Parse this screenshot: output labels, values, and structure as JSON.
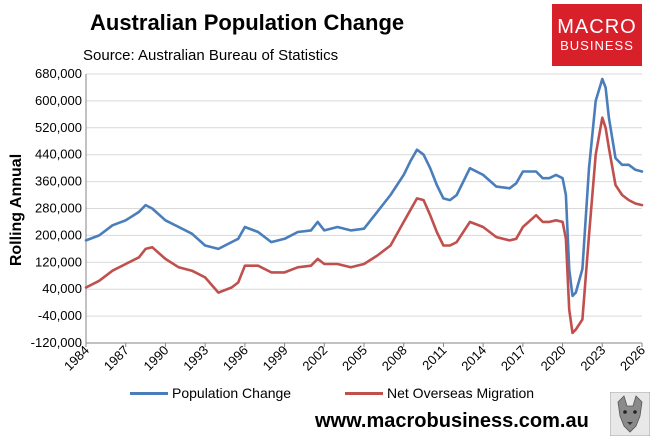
{
  "header": {
    "title": "Australian Population Change",
    "subtitle": "Source: Australian Bureau of Statistics"
  },
  "logo": {
    "line1": "MACRO",
    "line2": "BUSINESS",
    "color": "#d7202a"
  },
  "footer": {
    "website": "www.macrobusiness.com.au"
  },
  "colors": {
    "population": "#4a7ebb",
    "migration": "#c0504d"
  },
  "chart_data": {
    "type": "line",
    "title": "Australian Population Change",
    "subtitle": "Source: Australian Bureau of Statistics",
    "ylabel": "Rolling Annual",
    "xlabel": "",
    "ylim": [
      -120000,
      680000
    ],
    "yticks": [
      -120000,
      -40000,
      40000,
      120000,
      200000,
      280000,
      360000,
      440000,
      520000,
      600000,
      680000
    ],
    "ytick_labels": [
      "-120,000",
      "-40,000",
      "40,000",
      "120,000",
      "200,000",
      "280,000",
      "360,000",
      "440,000",
      "520,000",
      "600,000",
      "680,000"
    ],
    "xlim": [
      1984,
      2026
    ],
    "xticks": [
      "1984",
      "1987",
      "1990",
      "1993",
      "1996",
      "1999",
      "2002",
      "2005",
      "2008",
      "2011",
      "2014",
      "2017",
      "2020",
      "2023",
      "2026"
    ],
    "grid": "horizontal",
    "legend": "bottom",
    "x": [
      1984,
      1985,
      1986,
      1987,
      1988,
      1988.5,
      1989,
      1990,
      1991,
      1992,
      1993,
      1994,
      1995,
      1995.5,
      1996,
      1997,
      1998,
      1999,
      2000,
      2001,
      2001.5,
      2002,
      2003,
      2004,
      2005,
      2006,
      2007,
      2008,
      2008.5,
      2009,
      2009.5,
      2010,
      2010.5,
      2011,
      2011.5,
      2012,
      2013,
      2014,
      2015,
      2016,
      2016.5,
      2017,
      2018,
      2018.5,
      2019,
      2019.5,
      2020,
      2020.25,
      2020.5,
      2020.75,
      2021,
      2021.5,
      2022,
      2022.5,
      2023,
      2023.25,
      2023.5,
      2024,
      2024.5,
      2025,
      2025.5,
      2026
    ],
    "series": [
      {
        "name": "Population Change",
        "values": [
          185000,
          200000,
          230000,
          245000,
          270000,
          290000,
          280000,
          245000,
          225000,
          205000,
          170000,
          160000,
          180000,
          190000,
          225000,
          210000,
          180000,
          190000,
          210000,
          215000,
          240000,
          215000,
          225000,
          215000,
          220000,
          270000,
          320000,
          380000,
          420000,
          455000,
          440000,
          400000,
          350000,
          310000,
          305000,
          320000,
          400000,
          380000,
          345000,
          340000,
          355000,
          390000,
          390000,
          370000,
          370000,
          380000,
          370000,
          320000,
          100000,
          20000,
          30000,
          100000,
          400000,
          600000,
          665000,
          640000,
          550000,
          430000,
          410000,
          410000,
          395000,
          390000
        ]
      },
      {
        "name": "Net Overseas Migration",
        "values": [
          45000,
          65000,
          95000,
          115000,
          135000,
          160000,
          165000,
          130000,
          105000,
          95000,
          75000,
          30000,
          45000,
          60000,
          110000,
          110000,
          90000,
          90000,
          105000,
          110000,
          130000,
          115000,
          115000,
          105000,
          115000,
          140000,
          170000,
          240000,
          275000,
          310000,
          305000,
          260000,
          210000,
          170000,
          170000,
          180000,
          240000,
          225000,
          195000,
          185000,
          190000,
          225000,
          260000,
          240000,
          240000,
          245000,
          240000,
          190000,
          -20000,
          -90000,
          -80000,
          -50000,
          200000,
          440000,
          550000,
          520000,
          460000,
          350000,
          320000,
          305000,
          295000,
          290000
        ]
      }
    ]
  }
}
